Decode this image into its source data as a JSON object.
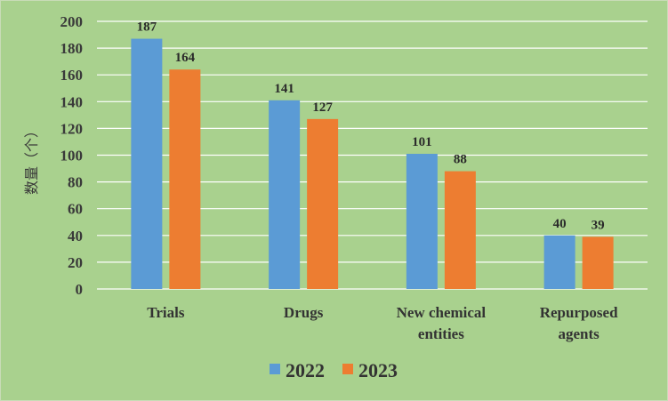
{
  "chart_data": {
    "type": "bar",
    "categories": [
      [
        "Trials"
      ],
      [
        "Drugs"
      ],
      [
        "New chemical",
        "entities"
      ],
      [
        "Repurposed",
        "agents"
      ]
    ],
    "series": [
      {
        "name": "2022",
        "values": [
          187,
          141,
          101,
          40
        ],
        "color": "#5b9bd5"
      },
      {
        "name": "2023",
        "values": [
          164,
          127,
          88,
          39
        ],
        "color": "#ed7d31"
      }
    ],
    "title": "",
    "xlabel": "",
    "ylabel": "数量（个）",
    "ylim": [
      0,
      200
    ],
    "yticks": [
      0,
      20,
      40,
      60,
      80,
      100,
      120,
      140,
      160,
      180,
      200
    ],
    "grid": true,
    "legend": "bottom"
  },
  "colors": {
    "background": "#a9d18e",
    "gridline": "#ffffff"
  }
}
